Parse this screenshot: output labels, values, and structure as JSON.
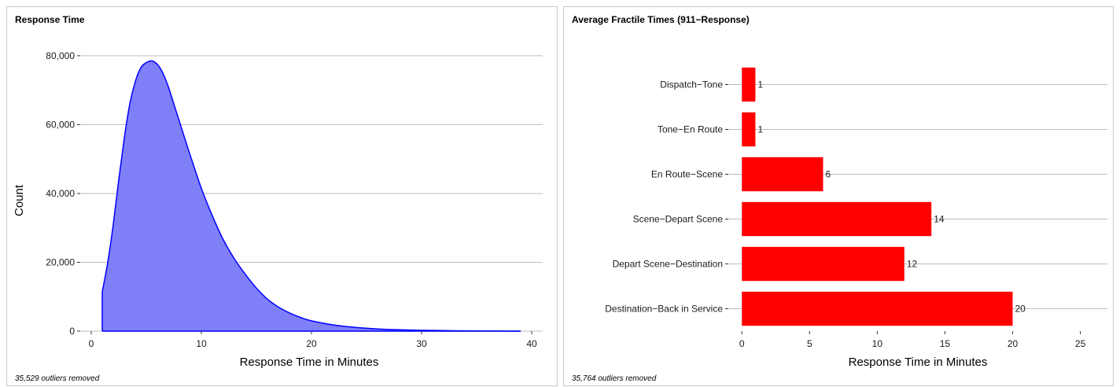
{
  "chart_data": [
    {
      "type": "area",
      "title": "Response Time",
      "xlabel": "Response Time in Minutes",
      "ylabel": "Count",
      "xlim": [
        -1,
        41
      ],
      "ylim": [
        0,
        85000
      ],
      "x_ticks": [
        0,
        10,
        20,
        30,
        40
      ],
      "x_tick_labels": [
        "0",
        "10",
        "20",
        "30",
        "40"
      ],
      "y_ticks": [
        0,
        20000,
        40000,
        60000,
        80000
      ],
      "y_tick_labels": [
        "0",
        "20,000",
        "40,000",
        "60,000",
        "80,000"
      ],
      "grid": "horizontal",
      "fill_color": "#7f7ff7",
      "line_color": "#0000ff",
      "x": [
        1,
        1.5,
        2,
        2.5,
        3,
        3.5,
        4,
        4.5,
        5,
        5.5,
        6,
        6.5,
        7,
        7.5,
        8,
        9,
        10,
        11,
        12,
        13,
        14,
        15,
        16,
        17,
        18,
        19,
        20,
        22,
        24,
        26,
        28,
        30,
        33,
        36,
        39
      ],
      "y": [
        11500,
        20000,
        31000,
        44000,
        56000,
        66000,
        72500,
        76500,
        78000,
        78500,
        77500,
        75000,
        71000,
        66000,
        61000,
        51000,
        41500,
        33500,
        26500,
        21000,
        16500,
        12500,
        9300,
        7000,
        5300,
        4000,
        3000,
        1800,
        1100,
        650,
        400,
        250,
        120,
        50,
        0
      ],
      "caption": "35,529 outliers removed"
    },
    {
      "type": "bar",
      "orientation": "horizontal",
      "title": "Average Fractile Times (911−Response)",
      "xlabel": "Response Time in Minutes",
      "xlim": [
        -1,
        27
      ],
      "x_ticks": [
        0,
        5,
        10,
        15,
        20,
        25
      ],
      "x_tick_labels": [
        "0",
        "5",
        "10",
        "15",
        "20",
        "25"
      ],
      "grid": "horizontal",
      "bar_color": "#ff0000",
      "categories": [
        "Dispatch−Tone",
        "Tone−En Route",
        "En Route−Scene",
        "Scene−Depart Scene",
        "Depart Scene−Destination",
        "Destination−Back in Service"
      ],
      "values": [
        1,
        1,
        6,
        14,
        12,
        20
      ],
      "value_labels": [
        "1",
        "1",
        "6",
        "14",
        "12",
        "20"
      ],
      "caption": "35,764 outliers removed"
    }
  ]
}
